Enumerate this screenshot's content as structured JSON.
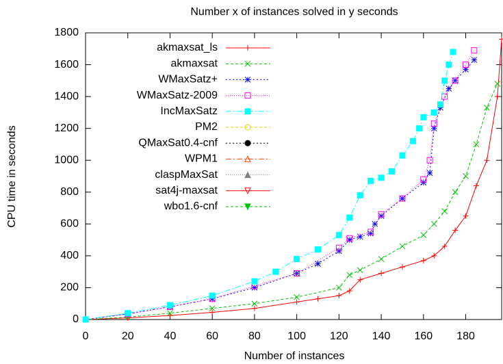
{
  "chart_data": {
    "type": "line",
    "title": "Number x of instances solved in y seconds",
    "x_label": "Number of instances",
    "y_label": "CPU time in seconds",
    "xlim": [
      0,
      197
    ],
    "ylim": [
      0,
      1800
    ],
    "xticks": [
      0,
      20,
      40,
      60,
      80,
      100,
      120,
      140,
      160,
      180
    ],
    "yticks": [
      0,
      200,
      400,
      600,
      800,
      1000,
      1200,
      1400,
      1600,
      1800
    ],
    "legend": "top-left",
    "series": [
      {
        "name": "akmaxsat_ls",
        "color": "#ff0000",
        "marker": "plus",
        "dash": "none",
        "x": [
          0,
          20,
          40,
          60,
          80,
          100,
          110,
          120,
          125,
          130,
          140,
          150,
          160,
          165,
          170,
          175,
          180,
          185,
          190,
          195,
          197
        ],
        "values": [
          0,
          10,
          25,
          45,
          70,
          110,
          130,
          150,
          180,
          250,
          290,
          330,
          370,
          400,
          460,
          560,
          650,
          840,
          1000,
          1400,
          1760
        ]
      },
      {
        "name": "akmaxsat",
        "color": "#00c000",
        "marker": "cross",
        "dash": "4,3",
        "x": [
          0,
          20,
          40,
          60,
          80,
          100,
          120,
          125,
          130,
          140,
          150,
          160,
          165,
          170,
          175,
          180,
          185,
          190,
          195
        ],
        "values": [
          0,
          15,
          40,
          70,
          100,
          140,
          200,
          280,
          310,
          380,
          460,
          530,
          600,
          680,
          800,
          900,
          1100,
          1330,
          1480
        ]
      },
      {
        "name": "WMaxSatz+",
        "color": "#0000ff",
        "marker": "star",
        "dash": "2,3",
        "x": [
          0,
          20,
          40,
          60,
          80,
          100,
          110,
          120,
          125,
          130,
          135,
          137,
          140,
          150,
          160,
          163,
          165,
          168,
          172,
          175,
          180,
          184
        ],
        "values": [
          0,
          35,
          80,
          130,
          200,
          290,
          350,
          430,
          500,
          520,
          540,
          600,
          650,
          760,
          860,
          920,
          1200,
          1330,
          1450,
          1500,
          1570,
          1630
        ]
      },
      {
        "name": "WMaxSatz-2009",
        "color": "#ff00ff",
        "marker": "square",
        "dash": "1,2",
        "x": [
          0,
          20,
          40,
          60,
          80,
          100,
          120,
          125,
          135,
          140,
          150,
          160,
          163,
          165,
          170,
          175,
          180,
          184
        ],
        "values": [
          0,
          35,
          80,
          130,
          210,
          290,
          450,
          510,
          550,
          660,
          760,
          880,
          1000,
          1230,
          1400,
          1500,
          1600,
          1690
        ]
      },
      {
        "name": "IncMaxSatz",
        "color": "#00ffff",
        "marker": "filled-square",
        "dash": "8,3,2,3",
        "x": [
          0,
          20,
          40,
          60,
          80,
          90,
          100,
          110,
          120,
          125,
          130,
          135,
          140,
          145,
          150,
          155,
          158,
          160,
          165,
          168,
          170,
          172,
          174
        ],
        "values": [
          0,
          40,
          90,
          150,
          240,
          300,
          380,
          440,
          530,
          640,
          780,
          870,
          890,
          930,
          1030,
          1120,
          1200,
          1270,
          1300,
          1350,
          1500,
          1600,
          1680
        ]
      },
      {
        "name": "PM2",
        "color": "#e8d000",
        "marker": "circle",
        "dash": "4,3",
        "x": [],
        "values": []
      },
      {
        "name": "QMaxSat0.4-cnf",
        "color": "#000000",
        "marker": "filled-circle",
        "dash": "2,3",
        "x": [],
        "values": []
      },
      {
        "name": "WPM1",
        "color": "#ff4000",
        "marker": "triangle",
        "dash": "8,3,2,3",
        "x": [],
        "values": []
      },
      {
        "name": "claspMaxSat",
        "color": "#808080",
        "marker": "filled-triangle",
        "dash": "1,2",
        "x": [],
        "values": []
      },
      {
        "name": "sat4j-maxsat",
        "color": "#ff0000",
        "marker": "down-triangle",
        "dash": "none",
        "x": [],
        "values": []
      },
      {
        "name": "wbo1.6-cnf",
        "color": "#00c000",
        "marker": "filled-down-triangle",
        "dash": "4,3",
        "x": [],
        "values": []
      }
    ]
  }
}
